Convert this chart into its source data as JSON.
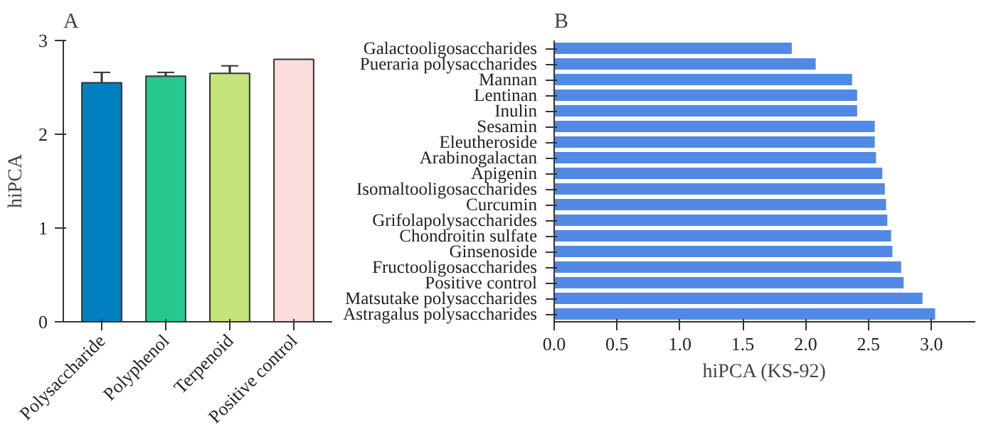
{
  "chart_data": [
    {
      "type": "bar",
      "title": "A",
      "ylabel": "hiPCA",
      "categories": [
        "Polysaccharide",
        "Polyphenol",
        "Terpenoid",
        "Positive control"
      ],
      "values": [
        2.55,
        2.62,
        2.65,
        2.8
      ],
      "errors": [
        [
          2.55,
          2.66
        ],
        [
          2.62,
          2.66
        ],
        [
          2.65,
          2.73
        ],
        null
      ],
      "colors": [
        "#0080c0",
        "#25c98e",
        "#c4e57a",
        "#fddcdc"
      ],
      "ylim": [
        0,
        3
      ],
      "yticks": [
        0,
        1,
        2,
        3
      ],
      "grid": false
    },
    {
      "type": "bar",
      "title": "B",
      "xlabel": "hiPCA (KS-92)",
      "orientation": "horizontal",
      "categories": [
        "Galactooligosaccharides",
        "Pueraria polysaccharides",
        "Mannan",
        "Lentinan",
        "Inulin",
        "Sesamin",
        "Eleutheroside",
        "Arabinogalactan",
        "Apigenin",
        "Isomaltooligosaccharides",
        "Curcumin",
        "Grifolapolysaccharides",
        "Chondroitin sulfate",
        "Ginsenoside",
        "Fructooligosaccharides",
        "Positive control",
        "Matsutake polysaccharides",
        "Astragalus polysaccharides"
      ],
      "values": [
        1.89,
        2.08,
        2.37,
        2.41,
        2.41,
        2.55,
        2.55,
        2.56,
        2.61,
        2.63,
        2.64,
        2.65,
        2.68,
        2.69,
        2.76,
        2.78,
        2.93,
        3.03
      ],
      "color": "#5189e5",
      "xlim": [
        0,
        3.35
      ],
      "xticks": [
        {
          "value": 0,
          "label": "0.0"
        },
        {
          "value": 0.5,
          "label": "0.5"
        },
        {
          "value": 1,
          "label": "1.0"
        },
        {
          "value": 1.5,
          "label": "1.5"
        },
        {
          "value": 2,
          "label": "2.0"
        },
        {
          "value": 2.5,
          "label": "2.5"
        },
        {
          "value": 3,
          "label": "3.0"
        }
      ],
      "grid": false
    }
  ]
}
